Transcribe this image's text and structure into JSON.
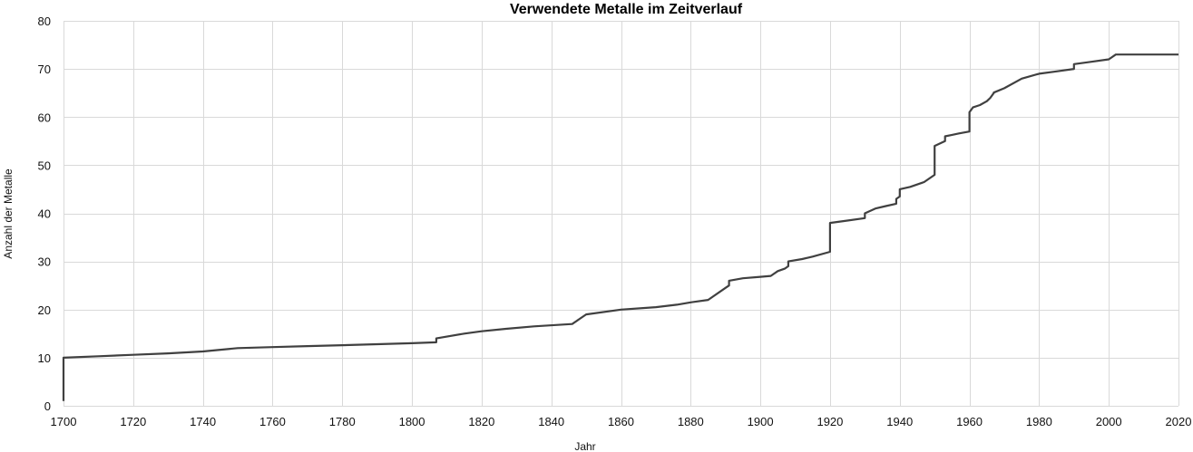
{
  "chart_data": {
    "type": "line",
    "title": "Verwendete Metalle im Zeitverlauf",
    "xlabel": "Jahr",
    "ylabel": "Anzahl der Metalle",
    "xlim": [
      1700,
      2020
    ],
    "ylim": [
      0,
      80
    ],
    "x_ticks": [
      "1700",
      "1720",
      "1740",
      "1760",
      "1780",
      "1800",
      "1820",
      "1840",
      "1860",
      "1880",
      "1900",
      "1920",
      "1940",
      "1960",
      "1980",
      "2000",
      "2020"
    ],
    "y_ticks": [
      "0",
      "10",
      "20",
      "30",
      "40",
      "50",
      "60",
      "70",
      "80"
    ],
    "grid": true,
    "legend": "none",
    "line_color": "#404040",
    "series": [
      {
        "x": [
          1700,
          1700,
          1710,
          1720,
          1730,
          1740,
          1750,
          1760,
          1770,
          1780,
          1790,
          1800,
          1807,
          1807,
          1815,
          1820,
          1827,
          1835,
          1846,
          1848,
          1850,
          1860,
          1870,
          1876,
          1880,
          1885,
          1890,
          1891,
          1891,
          1895,
          1900,
          1903,
          1905,
          1907,
          1908,
          1908,
          1912,
          1915,
          1920,
          1920,
          1925,
          1930,
          1930,
          1933,
          1936,
          1939,
          1939,
          1940,
          1940,
          1943,
          1947,
          1950,
          1950,
          1953,
          1953,
          1955,
          1957,
          1960,
          1960,
          1961,
          1963,
          1965,
          1966,
          1967,
          1967,
          1970,
          1975,
          1980,
          1985,
          1990,
          1990,
          1995,
          2000,
          2002,
          2010,
          2020
        ],
        "y": [
          1,
          10,
          10.3,
          10.6,
          10.9,
          11.3,
          12,
          12.2,
          12.4,
          12.6,
          12.8,
          13,
          13.2,
          14,
          15,
          15.5,
          16,
          16.5,
          17,
          18,
          19,
          20,
          20.5,
          21,
          21.5,
          22,
          24.5,
          25,
          26,
          26.5,
          26.8,
          27,
          28,
          28.5,
          29,
          30,
          30.5,
          31,
          32,
          38,
          38.5,
          39,
          40,
          41,
          41.5,
          42,
          43,
          43.5,
          45,
          45.5,
          46.5,
          48,
          54,
          55,
          56,
          56.3,
          56.6,
          57,
          61,
          62,
          62.5,
          63.3,
          64,
          65,
          65.1,
          66,
          68,
          69,
          69.5,
          70,
          71,
          71.5,
          72,
          73,
          73,
          73
        ]
      }
    ]
  }
}
